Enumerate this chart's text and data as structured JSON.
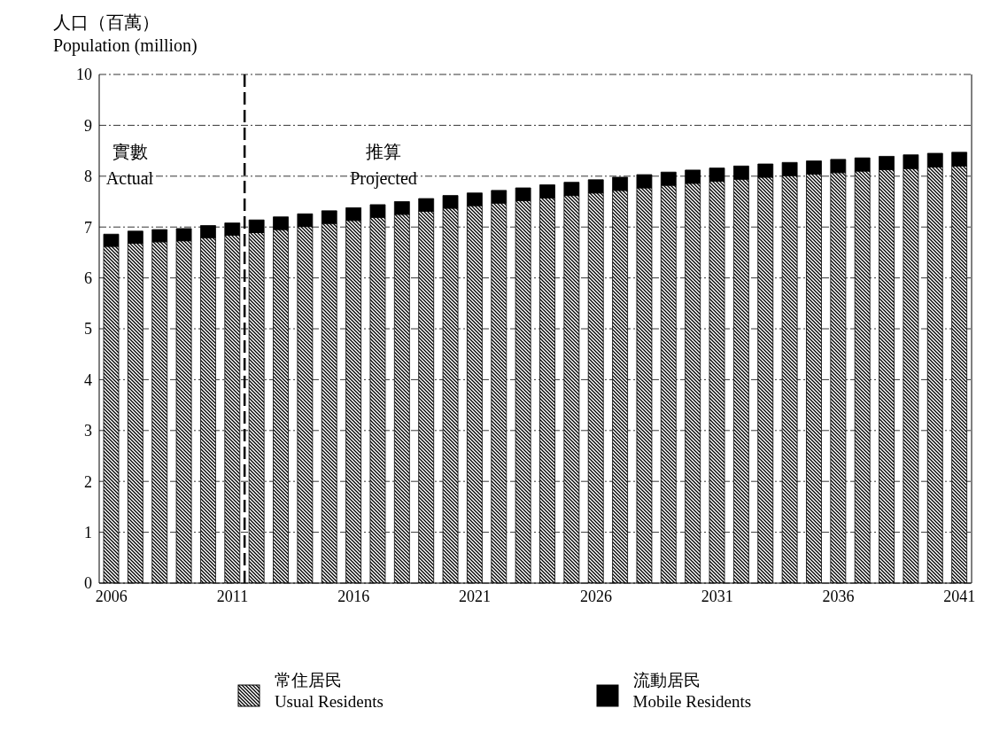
{
  "chart_data": {
    "type": "bar",
    "stacked": true,
    "ylabel": "人口（百萬）\nPopulation (million)",
    "x": [
      2006,
      2007,
      2008,
      2009,
      2010,
      2011,
      2012,
      2013,
      2014,
      2015,
      2016,
      2017,
      2018,
      2019,
      2020,
      2021,
      2022,
      2023,
      2024,
      2025,
      2026,
      2027,
      2028,
      2029,
      2030,
      2031,
      2032,
      2033,
      2034,
      2035,
      2036,
      2037,
      2038,
      2039,
      2040,
      2041
    ],
    "xlim": [
      2005.5,
      2041.5
    ],
    "xticks": [
      2006,
      2011,
      2016,
      2021,
      2026,
      2031,
      2036,
      2041
    ],
    "ylim": [
      0,
      10
    ],
    "yticks": [
      0,
      1,
      2,
      3,
      4,
      5,
      6,
      7,
      8,
      9,
      10
    ],
    "grid": "y",
    "legend": "bottom",
    "series": [
      {
        "name": "常住居民\nUsual Residents",
        "color": "#000000",
        "values": [
          6.62,
          6.68,
          6.71,
          6.73,
          6.79,
          6.84,
          6.89,
          6.95,
          7.01,
          7.07,
          7.13,
          7.19,
          7.25,
          7.31,
          7.37,
          7.42,
          7.47,
          7.52,
          7.57,
          7.62,
          7.67,
          7.72,
          7.77,
          7.82,
          7.86,
          7.9,
          7.94,
          7.98,
          8.01,
          8.04,
          8.07,
          8.1,
          8.13,
          8.15,
          8.18,
          8.2
        ]
      },
      {
        "name": "流動居民\nMobile Residents",
        "color": "#000000",
        "values": [
          0.24,
          0.24,
          0.24,
          0.24,
          0.24,
          0.24,
          0.25,
          0.25,
          0.25,
          0.25,
          0.25,
          0.25,
          0.25,
          0.25,
          0.25,
          0.25,
          0.25,
          0.25,
          0.26,
          0.26,
          0.26,
          0.26,
          0.26,
          0.26,
          0.26,
          0.26,
          0.26,
          0.26,
          0.26,
          0.26,
          0.26,
          0.26,
          0.26,
          0.27,
          0.27,
          0.27
        ]
      }
    ],
    "ref_lines": [
      {
        "axis": "x",
        "value": 2011.5,
        "line_style": "dashed",
        "color": "#000000"
      }
    ],
    "annotations": [
      "實數\nActual",
      "推算\nProjected"
    ]
  }
}
